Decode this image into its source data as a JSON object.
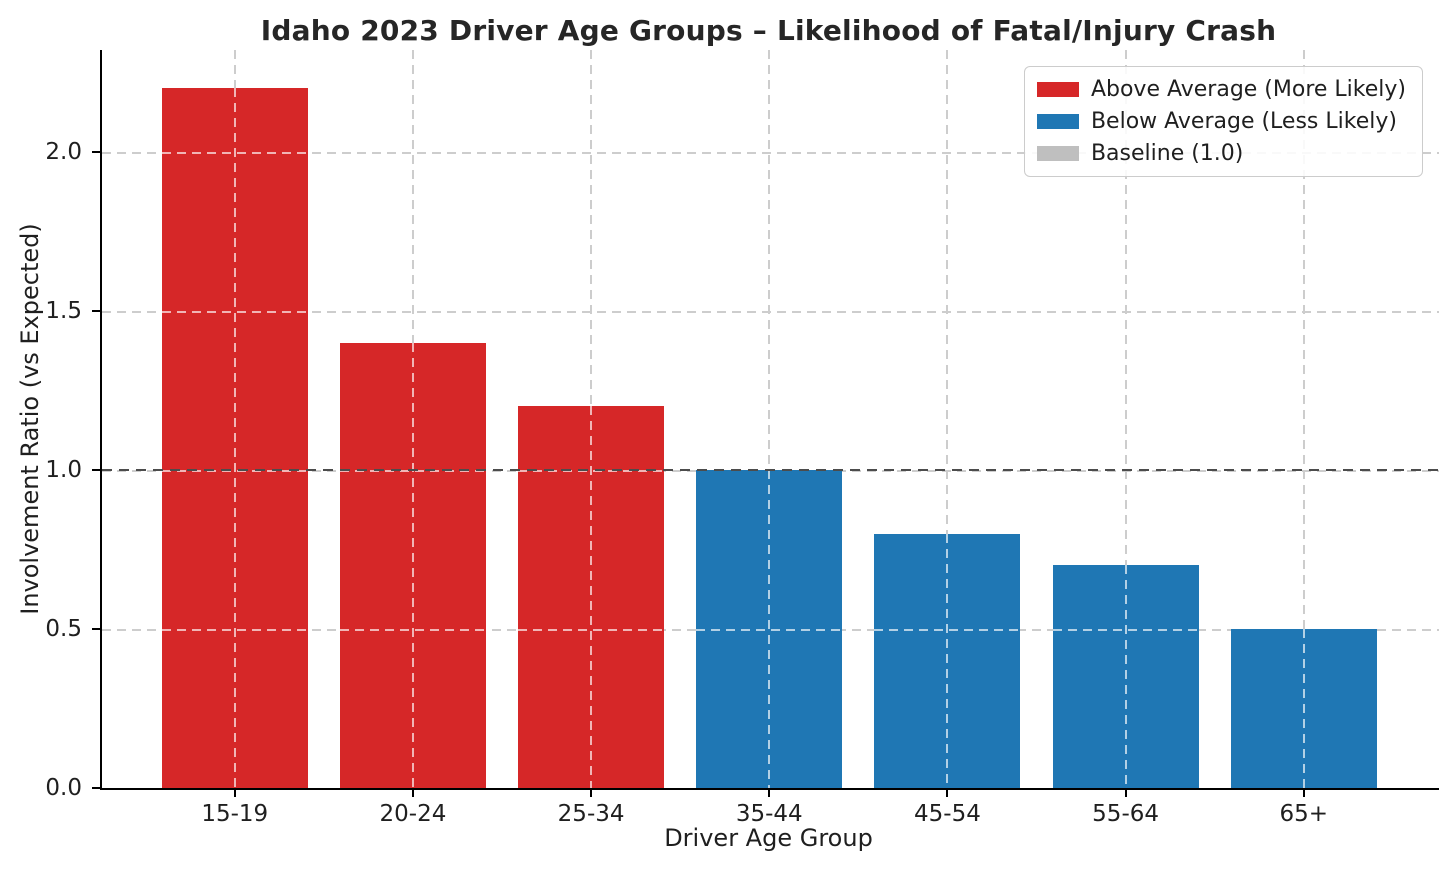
{
  "chart_data": {
    "type": "bar",
    "title": "Idaho 2023 Driver Age Groups – Likelihood of Fatal/Injury Crash",
    "xlabel": "Driver Age Group",
    "ylabel": "Involvement Ratio (vs Expected)",
    "categories": [
      "15-19",
      "20-24",
      "25-34",
      "35-44",
      "45-54",
      "55-64",
      "65+"
    ],
    "values": [
      2.2,
      1.4,
      1.2,
      1.0,
      0.8,
      0.7,
      0.5
    ],
    "bar_colors": [
      "#d62728",
      "#d62728",
      "#d62728",
      "#1f77b4",
      "#1f77b4",
      "#1f77b4",
      "#1f77b4"
    ],
    "ylim": [
      0,
      2.32
    ],
    "yticks": [
      0.0,
      0.5,
      1.0,
      1.5,
      2.0
    ],
    "ytick_labels": [
      "0.0",
      "0.5",
      "1.0",
      "1.5",
      "2.0"
    ],
    "baseline": {
      "value": 1.0,
      "color": "#4c4c4c",
      "style": "dashed"
    },
    "grid": true,
    "grid_color": "#cdcdcd",
    "legend": {
      "position": "top-right",
      "entries": [
        {
          "label": "Above Average (More Likely)",
          "color": "#d62728"
        },
        {
          "label": "Below Average (Less Likely)",
          "color": "#1f77b4"
        },
        {
          "label": "Baseline (1.0)",
          "color": "#bfbfbf"
        }
      ]
    },
    "colors": {
      "above_average": "#d62728",
      "below_average": "#1f77b4",
      "baseline_line": "#4c4c4c"
    }
  }
}
